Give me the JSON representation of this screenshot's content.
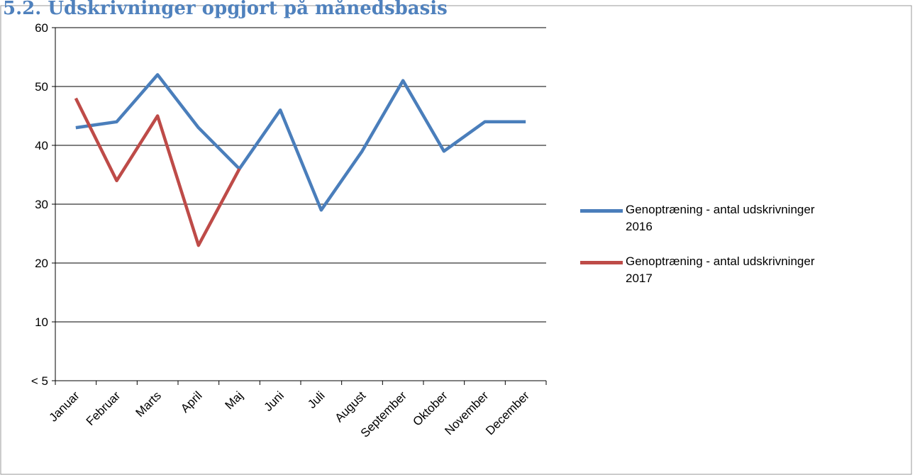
{
  "chart_data": {
    "type": "line",
    "title": "5.2. Udskrivninger opgjort på månedsbasis",
    "categories": [
      "Januar",
      "Februar",
      "Marts",
      "April",
      "Maj",
      "Juni",
      "Juli",
      "August",
      "September",
      "Oktober",
      "November",
      "December"
    ],
    "series": [
      {
        "name": "Genoptræning - antal udskrivninger 2016",
        "color": "#4a7ebb",
        "values": [
          43,
          44,
          52,
          43,
          36,
          46,
          29,
          39,
          51,
          39,
          44,
          44
        ]
      },
      {
        "name": "Genoptræning - antal udskrivninger 2017",
        "color": "#be4b48",
        "values": [
          48,
          34,
          45,
          23,
          36,
          null,
          null,
          null,
          null,
          null,
          null,
          null
        ]
      }
    ],
    "ylim": [
      0,
      60
    ],
    "yticks": [
      {
        "value": 0,
        "label": "< 5"
      },
      10,
      20,
      30,
      40,
      50,
      60
    ],
    "grid": true,
    "legend": "right"
  }
}
